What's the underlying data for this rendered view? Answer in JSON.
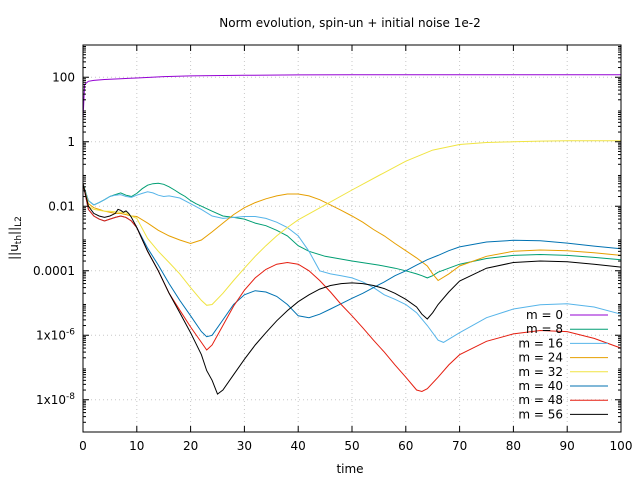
{
  "chart_data": {
    "type": "line",
    "title": "Norm evolution, spin-un + initial noise 1e-2",
    "xlabel": "time",
    "ylabel": "||u_th||_L2",
    "ylabel_parts": {
      "base": "||u",
      "sub": "th",
      "mid": "||",
      "sub2": "L2"
    },
    "xlim": [
      0,
      100
    ],
    "ylim": [
      1e-09,
      1000
    ],
    "yscale": "log",
    "grid": true,
    "legend_position": "bottom-right",
    "x_ticks": [
      "0",
      "10",
      "20",
      "30",
      "40",
      "50",
      "60",
      "70",
      "80",
      "90",
      "100"
    ],
    "y_ticks": [
      {
        "value": 1e-08,
        "label": "1x10-8"
      },
      {
        "value": 1e-06,
        "label": "1x10-6"
      },
      {
        "value": 0.0001,
        "label": "0.0001"
      },
      {
        "value": 0.01,
        "label": "0.01"
      },
      {
        "value": 1,
        "label": "1"
      },
      {
        "value": 100,
        "label": "100"
      }
    ],
    "series": [
      {
        "name": "m = 0",
        "color": "#9400d3",
        "x": [
          0,
          0.3,
          1,
          2,
          4,
          7,
          10,
          15,
          20,
          30,
          40,
          50,
          60,
          70,
          80,
          90,
          100
        ],
        "y": [
          5,
          60,
          75,
          80,
          85,
          90,
          95,
          105,
          110,
          115,
          118,
          120,
          120,
          120,
          120,
          120,
          120
        ]
      },
      {
        "name": "m = 8",
        "color": "#009e73",
        "x": [
          0,
          1,
          2,
          3,
          4,
          5,
          6,
          7,
          8,
          9,
          10,
          11,
          12,
          13,
          14,
          15,
          16,
          17,
          18,
          19,
          20,
          21,
          22,
          24,
          26,
          28,
          30,
          32,
          34,
          36,
          38,
          40,
          42,
          45,
          50,
          55,
          58,
          60,
          62,
          63,
          64,
          65,
          66,
          68,
          70,
          75,
          80,
          85,
          90,
          95,
          100
        ],
        "y": [
          0.05,
          0.015,
          0.011,
          0.013,
          0.016,
          0.02,
          0.023,
          0.026,
          0.022,
          0.02,
          0.025,
          0.035,
          0.045,
          0.05,
          0.052,
          0.048,
          0.04,
          0.032,
          0.025,
          0.02,
          0.015,
          0.012,
          0.01,
          0.007,
          0.005,
          0.0045,
          0.004,
          0.003,
          0.0025,
          0.0018,
          0.0012,
          0.0006,
          0.0004,
          0.00028,
          0.0002,
          0.00015,
          0.00012,
          0.0001,
          8e-05,
          7e-05,
          6e-05,
          7e-05,
          9e-05,
          0.00012,
          0.00016,
          0.00024,
          0.0003,
          0.00032,
          0.0003,
          0.00026,
          0.00022
        ]
      },
      {
        "name": "m = 16",
        "color": "#56b4e9",
        "x": [
          0,
          1,
          2,
          3,
          4,
          5,
          6,
          7,
          8,
          9,
          10,
          11,
          12,
          13,
          14,
          15,
          16,
          18,
          20,
          22,
          24,
          26,
          28,
          30,
          32,
          34,
          36,
          38,
          40,
          42,
          44,
          46,
          48,
          50,
          52,
          54,
          56,
          58,
          60,
          62,
          64,
          66,
          67,
          70,
          75,
          80,
          85,
          90,
          95,
          100
        ],
        "y": [
          0.05,
          0.015,
          0.011,
          0.013,
          0.016,
          0.02,
          0.022,
          0.023,
          0.02,
          0.019,
          0.022,
          0.025,
          0.028,
          0.026,
          0.022,
          0.02,
          0.021,
          0.018,
          0.012,
          0.008,
          0.005,
          0.0042,
          0.0045,
          0.0048,
          0.0048,
          0.0042,
          0.0032,
          0.0022,
          0.0012,
          0.0004,
          0.0001,
          8e-05,
          7e-05,
          6e-05,
          4.5e-05,
          3e-05,
          1.8e-05,
          1.3e-05,
          9e-06,
          5e-06,
          2e-06,
          7e-07,
          6e-07,
          1.2e-06,
          3.5e-06,
          6.5e-06,
          8.8e-06,
          9.5e-06,
          7.5e-06,
          4.5e-06
        ]
      },
      {
        "name": "m = 24",
        "color": "#e69f00",
        "x": [
          0,
          1,
          2,
          3,
          4,
          5,
          6,
          7,
          8,
          9,
          10,
          12,
          14,
          16,
          18,
          20,
          22,
          24,
          26,
          28,
          30,
          32,
          34,
          36,
          38,
          40,
          42,
          44,
          46,
          48,
          50,
          52,
          54,
          56,
          58,
          60,
          62,
          64,
          65,
          66,
          68,
          70,
          75,
          80,
          85,
          90,
          95,
          100
        ],
        "y": [
          0.05,
          0.012,
          0.009,
          0.008,
          0.007,
          0.0065,
          0.006,
          0.006,
          0.0055,
          0.005,
          0.0048,
          0.003,
          0.0018,
          0.0012,
          0.0009,
          0.0007,
          0.0009,
          0.0016,
          0.003,
          0.0055,
          0.009,
          0.013,
          0.017,
          0.021,
          0.024,
          0.024,
          0.021,
          0.016,
          0.011,
          0.0075,
          0.005,
          0.0032,
          0.0019,
          0.0012,
          0.0007,
          0.00042,
          0.00025,
          0.00014,
          8e-05,
          5e-05,
          8e-05,
          0.00014,
          0.00028,
          0.0004,
          0.00044,
          0.00042,
          0.00036,
          0.0003
        ]
      },
      {
        "name": "m = 32",
        "color": "#f0e442",
        "x": [
          0,
          1,
          2,
          3,
          4,
          5,
          6,
          7,
          8,
          9,
          10,
          12,
          14,
          16,
          18,
          20,
          22,
          23,
          24,
          26,
          28,
          30,
          32,
          34,
          36,
          38,
          40,
          45,
          50,
          55,
          60,
          65,
          70,
          75,
          80,
          85,
          90,
          95,
          100
        ],
        "y": [
          0.05,
          0.01,
          0.008,
          0.0075,
          0.007,
          0.007,
          0.0068,
          0.0065,
          0.0062,
          0.005,
          0.0042,
          0.001,
          0.0004,
          0.00018,
          8e-05,
          3e-05,
          1.2e-05,
          8.5e-06,
          9e-06,
          2e-05,
          5e-05,
          0.00012,
          0.00028,
          0.0006,
          0.0012,
          0.0022,
          0.0038,
          0.011,
          0.032,
          0.09,
          0.25,
          0.55,
          0.82,
          0.95,
          1.0,
          1.05,
          1.08,
          1.08,
          1.08
        ]
      },
      {
        "name": "m = 40",
        "color": "#0072b2",
        "x": [
          0,
          1,
          2,
          3,
          4,
          5,
          6,
          7,
          8,
          9,
          10,
          12,
          14,
          16,
          18,
          20,
          22,
          23,
          24,
          26,
          28,
          30,
          32,
          34,
          36,
          38,
          40,
          42,
          44,
          46,
          48,
          50,
          52,
          54,
          56,
          58,
          60,
          62,
          64,
          66,
          68,
          70,
          75,
          80,
          85,
          90,
          95,
          100
        ],
        "y": [
          0.05,
          0.008,
          0.005,
          0.004,
          0.0035,
          0.004,
          0.0045,
          0.005,
          0.0045,
          0.0035,
          0.0022,
          0.0005,
          0.00015,
          4e-05,
          1.2e-05,
          4e-06,
          1.3e-06,
          9e-07,
          1e-06,
          3e-06,
          9e-06,
          1.8e-05,
          2.4e-05,
          2.2e-05,
          1.6e-05,
          9e-06,
          4e-06,
          3.5e-06,
          4.5e-06,
          6.5e-06,
          9.5e-06,
          1.4e-05,
          2e-05,
          3e-05,
          4.5e-05,
          7e-05,
          0.0001,
          0.00015,
          0.00022,
          0.0003,
          0.00042,
          0.00055,
          0.00078,
          0.00088,
          0.00085,
          0.00072,
          0.00058,
          0.00048
        ]
      },
      {
        "name": "m = 48",
        "color": "#e51e10",
        "x": [
          0,
          1,
          2,
          3,
          4,
          5,
          6,
          7,
          8,
          9,
          10,
          12,
          14,
          16,
          18,
          20,
          22,
          23,
          24,
          26,
          28,
          30,
          32,
          34,
          36,
          38,
          40,
          42,
          44,
          46,
          48,
          50,
          52,
          54,
          56,
          58,
          60,
          62,
          63,
          64,
          66,
          68,
          70,
          75,
          80,
          85,
          90,
          95,
          100
        ],
        "y": [
          0.05,
          0.008,
          0.005,
          0.004,
          0.0035,
          0.004,
          0.0045,
          0.005,
          0.0045,
          0.0035,
          0.0022,
          0.0004,
          0.0001,
          2e-05,
          6e-06,
          1.8e-06,
          6e-07,
          3.5e-07,
          5e-07,
          2e-06,
          8e-06,
          2.5e-05,
          6e-05,
          0.00011,
          0.00016,
          0.00018,
          0.00016,
          0.0001,
          5e-05,
          2.2e-05,
          9e-06,
          4e-06,
          1.7e-06,
          7e-07,
          3e-07,
          1.2e-07,
          5e-08,
          2e-08,
          1.8e-08,
          2.2e-08,
          5e-08,
          1.2e-07,
          2.5e-07,
          6.5e-07,
          1.1e-06,
          1.4e-06,
          1.3e-06,
          8e-07,
          4e-07
        ]
      },
      {
        "name": "m = 56",
        "color": "#000000",
        "x": [
          0,
          1,
          2,
          3,
          4,
          5,
          6,
          6.5,
          7,
          7.5,
          8,
          8.5,
          9,
          10,
          12,
          14,
          16,
          18,
          20,
          22,
          23,
          24,
          25,
          26,
          28,
          30,
          32,
          34,
          36,
          38,
          40,
          42,
          44,
          46,
          48,
          50,
          52,
          54,
          56,
          58,
          60,
          62,
          63,
          64,
          65,
          66,
          68,
          70,
          75,
          80,
          85,
          90,
          95,
          100
        ],
        "y": [
          0.05,
          0.01,
          0.006,
          0.005,
          0.0045,
          0.005,
          0.006,
          0.008,
          0.0075,
          0.0065,
          0.0072,
          0.006,
          0.0045,
          0.0022,
          0.0004,
          0.0001,
          2e-05,
          5e-06,
          1.2e-06,
          2.5e-07,
          8e-08,
          4e-08,
          1.5e-08,
          2e-08,
          6e-08,
          1.8e-07,
          5e-07,
          1.2e-06,
          2.8e-06,
          5.8e-06,
          1.1e-05,
          1.8e-05,
          2.7e-05,
          3.5e-05,
          4e-05,
          4.2e-05,
          4e-05,
          3.5e-05,
          2.8e-05,
          2e-05,
          1.3e-05,
          7.5e-06,
          4.5e-06,
          3.2e-06,
          5e-06,
          9e-06,
          2.2e-05,
          4.8e-05,
          0.00012,
          0.00018,
          0.0002,
          0.00019,
          0.00016,
          0.00013
        ]
      }
    ]
  }
}
